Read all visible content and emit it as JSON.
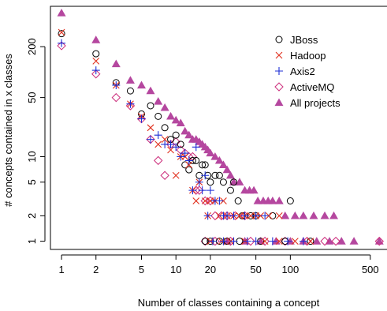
{
  "chart_data": {
    "type": "scatter",
    "title": "",
    "xlabel": "Number of classes containing a concept",
    "ylabel": "# concepts contained in x classes",
    "x_scale": "log",
    "y_scale": "log",
    "xlim": [
      0.8,
      700
    ],
    "ylim": [
      0.8,
      600
    ],
    "x_ticks": [
      1,
      2,
      5,
      10,
      20,
      50,
      100,
      500
    ],
    "y_ticks": [
      1,
      2,
      5,
      10,
      50,
      200
    ],
    "grid": false,
    "legend_position": "top-right",
    "series": [
      {
        "name": "JBoss",
        "marker": "circle",
        "color": "#000000",
        "points": [
          [
            1,
            285
          ],
          [
            2,
            165
          ],
          [
            3,
            75
          ],
          [
            4,
            60
          ],
          [
            5,
            32
          ],
          [
            6,
            40
          ],
          [
            7,
            30
          ],
          [
            8,
            22
          ],
          [
            9,
            16
          ],
          [
            10,
            18
          ],
          [
            11,
            14
          ],
          [
            12,
            8
          ],
          [
            13,
            7
          ],
          [
            14,
            9
          ],
          [
            15,
            9
          ],
          [
            16,
            6
          ],
          [
            17,
            8
          ],
          [
            18,
            8
          ],
          [
            19,
            6
          ],
          [
            20,
            5
          ],
          [
            22,
            6
          ],
          [
            24,
            6
          ],
          [
            26,
            5
          ],
          [
            30,
            4
          ],
          [
            32,
            5
          ],
          [
            35,
            3
          ],
          [
            38,
            2
          ],
          [
            45,
            2
          ],
          [
            50,
            2
          ],
          [
            70,
            2
          ],
          [
            100,
            3
          ],
          [
            18,
            1
          ],
          [
            20,
            1
          ],
          [
            24,
            1
          ],
          [
            28,
            1
          ],
          [
            36,
            1
          ],
          [
            55,
            1
          ],
          [
            90,
            1
          ],
          [
            150,
            1
          ]
        ]
      },
      {
        "name": "Hadoop",
        "marker": "x",
        "color": "#e0301e",
        "points": [
          [
            1,
            295
          ],
          [
            2,
            135
          ],
          [
            3,
            70
          ],
          [
            4,
            42
          ],
          [
            5,
            30
          ],
          [
            6,
            22
          ],
          [
            7,
            14
          ],
          [
            8,
            16
          ],
          [
            9,
            12
          ],
          [
            10,
            6
          ],
          [
            11,
            10
          ],
          [
            12,
            10
          ],
          [
            13,
            8
          ],
          [
            14,
            4
          ],
          [
            15,
            3
          ],
          [
            16,
            5
          ],
          [
            18,
            3
          ],
          [
            19,
            2
          ],
          [
            20,
            3
          ],
          [
            22,
            3
          ],
          [
            24,
            2
          ],
          [
            26,
            3
          ],
          [
            28,
            2
          ],
          [
            32,
            2
          ],
          [
            36,
            2
          ],
          [
            40,
            2
          ],
          [
            45,
            2
          ],
          [
            50,
            2
          ],
          [
            55,
            2
          ],
          [
            65,
            2
          ],
          [
            80,
            2
          ],
          [
            20,
            1
          ],
          [
            25,
            1
          ],
          [
            30,
            1
          ],
          [
            40,
            1
          ],
          [
            60,
            1
          ],
          [
            80,
            1
          ],
          [
            110,
            1
          ],
          [
            150,
            1
          ]
        ]
      },
      {
        "name": "Axis2",
        "marker": "plus",
        "color": "#1c2fd6",
        "points": [
          [
            1,
            220
          ],
          [
            2,
            105
          ],
          [
            3,
            70
          ],
          [
            4,
            42
          ],
          [
            5,
            28
          ],
          [
            6,
            16
          ],
          [
            7,
            18
          ],
          [
            8,
            14
          ],
          [
            9,
            14
          ],
          [
            10,
            13
          ],
          [
            11,
            10
          ],
          [
            12,
            11
          ],
          [
            13,
            9
          ],
          [
            14,
            4
          ],
          [
            15,
            13
          ],
          [
            16,
            5
          ],
          [
            17,
            4
          ],
          [
            18,
            6
          ],
          [
            19,
            2
          ],
          [
            20,
            4
          ],
          [
            22,
            3
          ],
          [
            24,
            3
          ],
          [
            26,
            2
          ],
          [
            28,
            2
          ],
          [
            32,
            2
          ],
          [
            40,
            2
          ],
          [
            50,
            2
          ],
          [
            60,
            2
          ],
          [
            21,
            1
          ],
          [
            26,
            1
          ],
          [
            32,
            1
          ],
          [
            42,
            1
          ],
          [
            50,
            1
          ],
          [
            70,
            1
          ],
          [
            95,
            1
          ],
          [
            130,
            1
          ]
        ]
      },
      {
        "name": "ActiveMQ",
        "marker": "diamond",
        "color": "#cc2e7c",
        "points": [
          [
            1,
            205
          ],
          [
            2,
            95
          ],
          [
            3,
            50
          ],
          [
            4,
            40
          ],
          [
            5,
            28
          ],
          [
            6,
            16
          ],
          [
            7,
            9
          ],
          [
            8,
            6
          ],
          [
            9,
            14
          ],
          [
            10,
            15
          ],
          [
            11,
            12
          ],
          [
            12,
            11
          ],
          [
            13,
            10
          ],
          [
            14,
            10
          ],
          [
            15,
            4
          ],
          [
            16,
            4
          ],
          [
            18,
            3
          ],
          [
            20,
            3
          ],
          [
            22,
            2
          ],
          [
            25,
            2
          ],
          [
            28,
            2
          ],
          [
            33,
            2
          ],
          [
            40,
            2
          ],
          [
            18,
            1
          ],
          [
            22,
            1
          ],
          [
            30,
            1
          ],
          [
            45,
            1
          ],
          [
            60,
            1
          ],
          [
            90,
            1
          ],
          [
            140,
            1
          ],
          [
            200,
            1
          ],
          [
            250,
            1
          ],
          [
            600,
            1
          ]
        ]
      },
      {
        "name": "All projects",
        "marker": "triangle",
        "color": "#b5479f",
        "points": [
          [
            1,
            500
          ],
          [
            2,
            240
          ],
          [
            3,
            125
          ],
          [
            4,
            80
          ],
          [
            5,
            70
          ],
          [
            6,
            60
          ],
          [
            7,
            45
          ],
          [
            8,
            38
          ],
          [
            9,
            30
          ],
          [
            10,
            27
          ],
          [
            11,
            25
          ],
          [
            12,
            20
          ],
          [
            13,
            18
          ],
          [
            14,
            16
          ],
          [
            15,
            16
          ],
          [
            16,
            15
          ],
          [
            17,
            14
          ],
          [
            18,
            13
          ],
          [
            19,
            12
          ],
          [
            20,
            11
          ],
          [
            22,
            10
          ],
          [
            24,
            9
          ],
          [
            26,
            8
          ],
          [
            28,
            7
          ],
          [
            30,
            6
          ],
          [
            32,
            5
          ],
          [
            36,
            5
          ],
          [
            40,
            4
          ],
          [
            44,
            4
          ],
          [
            48,
            4
          ],
          [
            52,
            3
          ],
          [
            58,
            3
          ],
          [
            64,
            3
          ],
          [
            70,
            3
          ],
          [
            80,
            3
          ],
          [
            90,
            2
          ],
          [
            110,
            2
          ],
          [
            130,
            2
          ],
          [
            160,
            2
          ],
          [
            200,
            2
          ],
          [
            240,
            2
          ],
          [
            28,
            1
          ],
          [
            40,
            1
          ],
          [
            55,
            1
          ],
          [
            75,
            1
          ],
          [
            100,
            1
          ],
          [
            130,
            1
          ],
          [
            170,
            1
          ],
          [
            220,
            1
          ],
          [
            280,
            1
          ],
          [
            360,
            1
          ],
          [
            600,
            1
          ]
        ]
      }
    ]
  }
}
